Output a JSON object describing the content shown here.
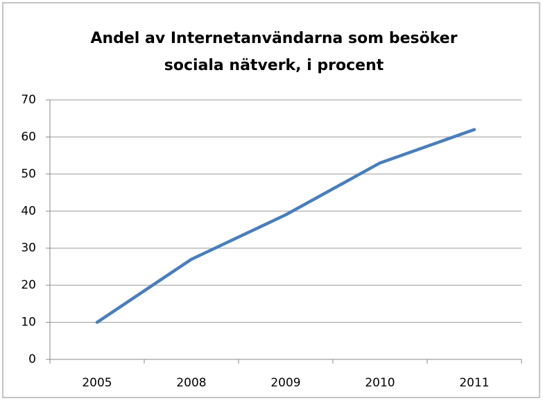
{
  "chart_data": {
    "type": "line",
    "title": [
      "Andel av Internetanvändarna som besöker",
      "sociala nätverk, i procent"
    ],
    "categories": [
      "2005",
      "2008",
      "2009",
      "2010",
      "2011"
    ],
    "values": [
      10,
      27,
      39,
      53,
      62
    ],
    "color": "#4a7ebb",
    "ylim": [
      0,
      70
    ],
    "yticks": [
      0,
      10,
      20,
      30,
      40,
      50,
      60,
      70
    ],
    "grid": true
  }
}
